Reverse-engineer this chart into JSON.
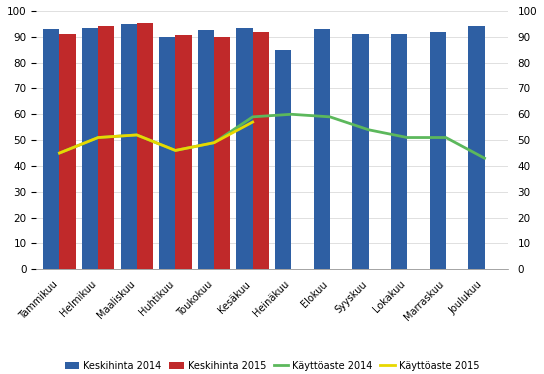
{
  "months": [
    "Tammikuu",
    "Helmikuu",
    "Maaliskuu",
    "Huhtikuu",
    "Toukokuu",
    "Kesäkuu",
    "Heinäkuu",
    "Elokuu",
    "Syyskuu",
    "Lokakuu",
    "Marraskuu",
    "Joulukuu"
  ],
  "keskihinta_2014": [
    93,
    93.5,
    95,
    90,
    92.5,
    93.5,
    85,
    93,
    91,
    91,
    92,
    94
  ],
  "keskihinta_2015": [
    91,
    94,
    95.5,
    90.5,
    90,
    92,
    null,
    null,
    null,
    null,
    null,
    null
  ],
  "kayttoaste_2014": [
    45,
    51,
    52,
    46,
    49,
    59,
    60,
    59,
    54,
    51,
    51,
    43
  ],
  "kayttoaste_2015": [
    45,
    51,
    52,
    46,
    49,
    57,
    null,
    null,
    null,
    null,
    null,
    null
  ],
  "bar_color_2014": "#2E5FA3",
  "bar_color_2015": "#C0292A",
  "line_color_2014": "#5CB85C",
  "line_color_2015": "#E8D800",
  "ylim": [
    0,
    100
  ],
  "yticks": [
    0,
    10,
    20,
    30,
    40,
    50,
    60,
    70,
    80,
    90,
    100
  ],
  "bar_width": 0.42,
  "legend_labels": [
    "Keskihinta 2014",
    "Keskihinta 2015",
    "Käyttöaste 2014",
    "Käyttöaste 2015"
  ],
  "figsize": [
    5.44,
    3.74
  ],
  "dpi": 100
}
